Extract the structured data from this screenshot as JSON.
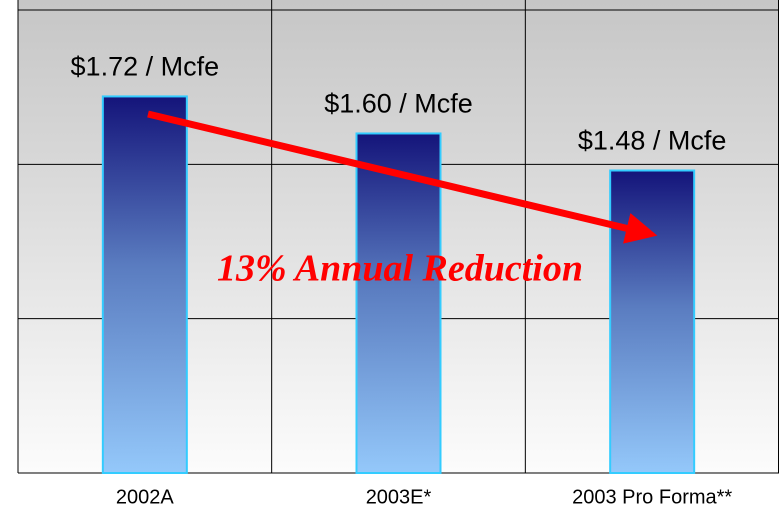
{
  "chart_data": {
    "type": "bar",
    "categories": [
      "2002A",
      "2003E*",
      "2003 Pro Forma**"
    ],
    "values": [
      1.72,
      1.6,
      1.48
    ],
    "value_labels": [
      "$1.72 / Mcfe",
      "$1.60 / Mcfe",
      "$1.48 / Mcfe"
    ],
    "color": "#1a1a80",
    "ylim": [
      0.5,
      2.0
    ],
    "yticks": [
      0.5,
      1.0,
      1.5,
      2.0
    ],
    "grid": true,
    "annotation": "13% Annual Reduction"
  }
}
